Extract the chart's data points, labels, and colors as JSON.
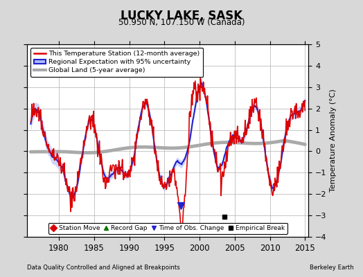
{
  "title": "LUCKY LAKE, SASK",
  "subtitle": "50.950 N, 107.150 W (Canada)",
  "ylabel": "Temperature Anomaly (°C)",
  "xlabel_left": "Data Quality Controlled and Aligned at Breakpoints",
  "xlabel_right": "Berkeley Earth",
  "ylim": [
    -4,
    5
  ],
  "xlim": [
    1975.5,
    2015.5
  ],
  "xticks": [
    1980,
    1985,
    1990,
    1995,
    2000,
    2005,
    2010,
    2015
  ],
  "yticks": [
    -4,
    -3,
    -2,
    -1,
    0,
    1,
    2,
    3,
    4,
    5
  ],
  "bg_color": "#d8d8d8",
  "plot_bg_color": "#ffffff",
  "grid_color": "#bbbbbb",
  "station_color": "#dd0000",
  "regional_color": "#2222cc",
  "regional_fill": "#aabbff",
  "global_color": "#aaaaaa",
  "station_lw": 1.2,
  "regional_lw": 1.5,
  "global_lw": 3.5,
  "empirical_break_x": 2003.5,
  "empirical_break_y": -3.05,
  "time_of_obs_x": 1997.3,
  "time_of_obs_y": -2.55
}
